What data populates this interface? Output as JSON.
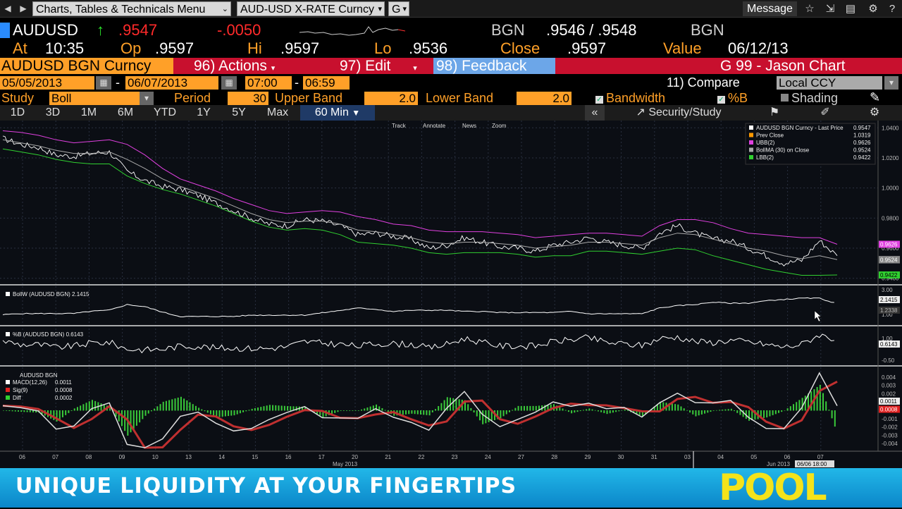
{
  "topbar": {
    "menu1": "Charts, Tables & Technicals Menu",
    "menu2": "AUD-USD X-RATE Curncy",
    "menu3": "G",
    "message": "Message"
  },
  "quote": {
    "ticker": "AUDUSD",
    "arrow": "↑",
    "last": ".9547",
    "change": "-.0050",
    "source1": "BGN",
    "bid_ask": ".9546 / .9548",
    "source2": "BGN",
    "at_label": "At",
    "time": "10:35",
    "op_label": "Op",
    "open": ".9597",
    "hi_label": "Hi",
    "high": ".9597",
    "lo_label": "Lo",
    "low": ".9536",
    "close_label": "Close",
    "close": ".9597",
    "value_label": "Value",
    "value_date": "06/12/13"
  },
  "actionbar": {
    "security": "AUDUSD BGN Curncy",
    "actions": "96) Actions",
    "edit": "97) Edit",
    "feedback": "98) Feedback",
    "chart_name": "G 99 - Jason Chart"
  },
  "daterow": {
    "start_date": "05/05/2013",
    "end_date": "06/07/2013",
    "start_time": "07:00",
    "end_time": "06:59",
    "dash": "-",
    "compare": "11) Compare",
    "currency": "Local CCY"
  },
  "studyrow": {
    "study_label": "Study",
    "study": "Boll",
    "period_label": "Period",
    "period": "30",
    "upper_label": "Upper Band",
    "upper": "2.0",
    "lower_label": "Lower Band",
    "lower": "2.0",
    "bandwidth": "Bandwidth",
    "percent_b": "%B",
    "shading": "Shading"
  },
  "tabs": [
    "1D",
    "3D",
    "1M",
    "6M",
    "YTD",
    "1Y",
    "5Y",
    "Max",
    "60 Min"
  ],
  "tabs_right": {
    "collapse": "«",
    "security_study": "Security/Study"
  },
  "toolbar_chart": [
    "Track",
    "Annotate",
    "News",
    "Zoom"
  ],
  "legend_main": [
    {
      "label": "AUDUSD BGN Curncy - Last Price",
      "value": "0.9547",
      "color": "#ffffff"
    },
    {
      "label": "Prev Close",
      "value": "1.0319",
      "color": "#ff9900"
    },
    {
      "label": "UBB(2)",
      "value": "0.9626",
      "color": "#e040e0"
    },
    {
      "label": "BollMA (30) on Close",
      "value": "0.9524",
      "color": "#aaaaaa"
    },
    {
      "label": "LBB(2)",
      "value": "0.9422",
      "color": "#30d030"
    }
  ],
  "panels": {
    "bollw": {
      "title": "BollW (AUDUSD BGN)",
      "value": "2.1415"
    },
    "pctb": {
      "title": "%B (AUDUSD BGN)",
      "value": "0.6143"
    },
    "macd": {
      "title": "AUDUSD BGN",
      "macd_label": "MACD(12,26)",
      "macd": "0.0011",
      "sig_label": "Sig(9)",
      "sig": "0.0008",
      "diff_label": "Diff",
      "diff": "0.0002"
    }
  },
  "axis_main": [
    "1.0400",
    "1.0200",
    "1.0000",
    "0.9800",
    "0.9600",
    "0.9400"
  ],
  "axis_main_tags": {
    "ubb": "0.9626",
    "bollma": "0.9524",
    "last": "0.9547",
    "lbb": "0.9422"
  },
  "axis_bollw": [
    "3.00",
    "1.00"
  ],
  "axis_bollw_tags": [
    "2.1415",
    "1.2338"
  ],
  "axis_pctb": [
    "1.00",
    "-0.50"
  ],
  "axis_pctb_tag": "0.6143",
  "axis_macd": [
    "0.004",
    "0.003",
    "0.002",
    "0.001",
    "-0.001",
    "-0.002",
    "-0.003",
    "-0.004"
  ],
  "axis_macd_tags": [
    "0.0011",
    "0.0008"
  ],
  "x_ticks": [
    "06",
    "07",
    "08",
    "09",
    "10",
    "13",
    "14",
    "15",
    "16",
    "17",
    "20",
    "21",
    "22",
    "23",
    "24",
    "27",
    "28",
    "29",
    "30",
    "31",
    "03",
    "04",
    "05",
    "06",
    "07"
  ],
  "x_months": {
    "may": "May 2013",
    "jun": "Jun 2013",
    "cursor": "06/06 18:00"
  },
  "chart_data": {
    "type": "line",
    "series": [
      {
        "name": "AUDUSD BGN Curncy - Last Price",
        "values": [
          1.033,
          1.029,
          1.027,
          1.022,
          1.021,
          1.023,
          1.024,
          1.011,
          1.005,
          1.001,
          0.999,
          0.995,
          0.99,
          0.985,
          0.98,
          0.976,
          0.975,
          0.979,
          0.978,
          0.975,
          0.969,
          0.97,
          0.968,
          0.966,
          0.96,
          0.962,
          0.967,
          0.964,
          0.961,
          0.96,
          0.958,
          0.962,
          0.964,
          0.967,
          0.964,
          0.962,
          0.96,
          0.97,
          0.975,
          0.97,
          0.966,
          0.965,
          0.96,
          0.955,
          0.95,
          0.952,
          0.965,
          0.955
        ]
      },
      {
        "name": "UBB(2)",
        "values": [
          1.038,
          1.037,
          1.035,
          1.032,
          1.03,
          1.031,
          1.032,
          1.029,
          1.022,
          1.013,
          1.006,
          1.002,
          0.998,
          0.993,
          0.989,
          0.985,
          0.983,
          0.984,
          0.985,
          0.984,
          0.981,
          0.979,
          0.976,
          0.975,
          0.972,
          0.971,
          0.971,
          0.971,
          0.97,
          0.969,
          0.967,
          0.968,
          0.969,
          0.97,
          0.97,
          0.969,
          0.968,
          0.975,
          0.979,
          0.979,
          0.977,
          0.973,
          0.97,
          0.969,
          0.968,
          0.967,
          0.967,
          0.9626
        ]
      },
      {
        "name": "BollMA (30) on Close",
        "values": [
          1.032,
          1.03,
          1.028,
          1.025,
          1.023,
          1.023,
          1.024,
          1.019,
          1.013,
          1.006,
          1.001,
          0.997,
          0.993,
          0.988,
          0.983,
          0.979,
          0.977,
          0.978,
          0.978,
          0.976,
          0.972,
          0.971,
          0.969,
          0.967,
          0.964,
          0.963,
          0.964,
          0.964,
          0.963,
          0.962,
          0.96,
          0.961,
          0.962,
          0.964,
          0.964,
          0.963,
          0.962,
          0.967,
          0.97,
          0.969,
          0.966,
          0.963,
          0.96,
          0.958,
          0.955,
          0.953,
          0.955,
          0.9524
        ]
      },
      {
        "name": "LBB(2)",
        "values": [
          1.026,
          1.024,
          1.022,
          1.019,
          1.017,
          1.016,
          1.016,
          1.008,
          1.003,
          0.999,
          0.996,
          0.992,
          0.988,
          0.983,
          0.978,
          0.974,
          0.972,
          0.973,
          0.972,
          0.969,
          0.964,
          0.963,
          0.962,
          0.96,
          0.957,
          0.956,
          0.957,
          0.957,
          0.957,
          0.956,
          0.954,
          0.955,
          0.955,
          0.958,
          0.958,
          0.957,
          0.956,
          0.958,
          0.96,
          0.959,
          0.955,
          0.952,
          0.949,
          0.946,
          0.944,
          0.942,
          0.942,
          0.9422
        ]
      }
    ],
    "ylim": [
      0.938,
      1.042
    ],
    "grid": true,
    "legend": "top-right"
  },
  "icons": {
    "back": "back-arrow-icon",
    "forward": "forward-arrow-icon",
    "star": "star-icon",
    "export": "export-icon",
    "doc": "document-icon",
    "gear": "gear-icon",
    "help": "help-icon"
  }
}
